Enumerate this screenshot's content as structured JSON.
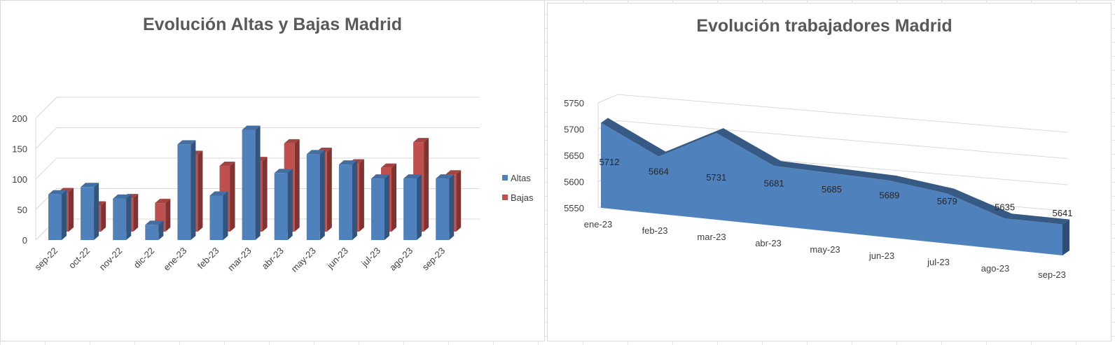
{
  "chart_data": [
    {
      "type": "bar",
      "title": "Evolución Altas y Bajas Madrid",
      "categories": [
        "sep-22",
        "oct-22",
        "nov-22",
        "dic-22",
        "ene-23",
        "feb-23",
        "mar-23",
        "abr-23",
        "may-23",
        "jun-23",
        "jul-23",
        "ago-23",
        "sep-23"
      ],
      "series": [
        {
          "name": "Altas",
          "color": "#4f81bd",
          "values": [
            75,
            87,
            68,
            25,
            157,
            73,
            181,
            110,
            141,
            124,
            101,
            101,
            101
          ]
        },
        {
          "name": "Bajas",
          "color": "#c0504d",
          "values": [
            65,
            43,
            55,
            47,
            126,
            108,
            116,
            145,
            131,
            112,
            105,
            147,
            94
          ]
        }
      ],
      "yticks": [
        0,
        50,
        100,
        150,
        200
      ],
      "ylim": [
        0,
        200
      ],
      "grid": true,
      "legend": "right",
      "xlabel": "",
      "ylabel": ""
    },
    {
      "type": "area",
      "title": "Evolución trabajadores Madrid",
      "categories": [
        "ene-23",
        "feb-23",
        "mar-23",
        "abr-23",
        "may-23",
        "jun-23",
        "jul-23",
        "ago-23",
        "sep-23"
      ],
      "series": [
        {
          "name": "Trabajadores",
          "color": "#4f81bd",
          "values": [
            5712,
            5664,
            5731,
            5681,
            5685,
            5689,
            5679,
            5635,
            5641
          ]
        }
      ],
      "yticks": [
        5550,
        5600,
        5650,
        5700,
        5750
      ],
      "ylim": [
        5550,
        5750
      ],
      "grid": true,
      "data_labels": true,
      "xlabel": "",
      "ylabel": ""
    }
  ]
}
